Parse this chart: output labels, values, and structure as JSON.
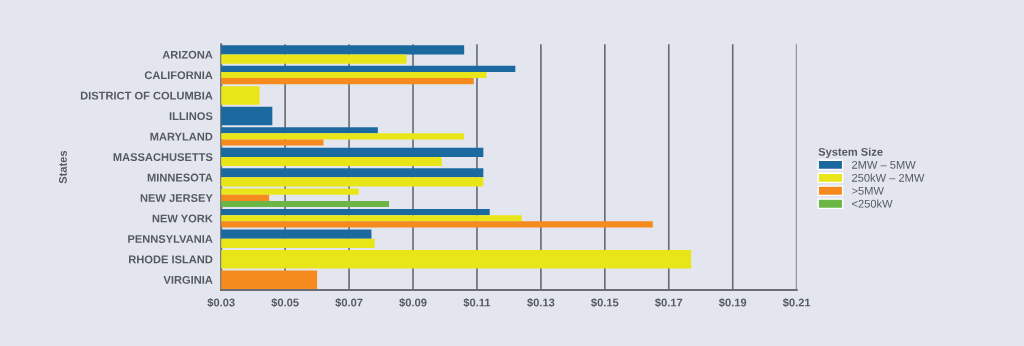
{
  "chart_data": {
    "type": "bar",
    "orientation": "horizontal",
    "ylabel": "States",
    "legend_title": "System Size",
    "legend": "right",
    "grid": "x",
    "categories": [
      "ARIZONA",
      "CALIFORNIA",
      "DISTRICT OF COLUMBIA",
      "ILLINOS",
      "MARYLAND",
      "MASSACHUSETTS",
      "MINNESOTA",
      "NEW JERSEY",
      "NEW YORK",
      "PENNSYLVANIA",
      "RHODE ISLAND",
      "VIRGINIA"
    ],
    "series": [
      {
        "name": "2MW – 5MW",
        "color": "#1a6aa0",
        "values": [
          0.106,
          0.122,
          null,
          0.046,
          0.079,
          0.112,
          0.112,
          null,
          0.114,
          0.077,
          null,
          null
        ]
      },
      {
        "name": "250kW – 2MW",
        "color": "#e8e619",
        "values": [
          0.088,
          0.113,
          0.042,
          null,
          0.106,
          0.099,
          0.112,
          0.073,
          0.124,
          0.078,
          0.177,
          null
        ]
      },
      {
        "name": ">5MW",
        "color": "#f58a1f",
        "values": [
          null,
          0.109,
          null,
          null,
          0.062,
          null,
          null,
          0.045,
          0.165,
          null,
          null,
          0.06
        ]
      },
      {
        "name": "<250kW",
        "color": "#6bb644",
        "values": [
          null,
          null,
          null,
          null,
          null,
          null,
          null,
          0.0825,
          null,
          null,
          null,
          null
        ]
      }
    ],
    "xlim": [
      0.03,
      0.21
    ],
    "xticks": [
      {
        "value": 0.03,
        "label": "$0.03"
      },
      {
        "value": 0.05,
        "label": "$0.05"
      },
      {
        "value": 0.07,
        "label": "$0.07"
      },
      {
        "value": 0.09,
        "label": "$0.09"
      },
      {
        "value": 0.11,
        "label": "$0.11"
      },
      {
        "value": 0.13,
        "label": "$0.13"
      },
      {
        "value": 0.15,
        "label": "$0.15"
      },
      {
        "value": 0.17,
        "label": "$0.17"
      },
      {
        "value": 0.19,
        "label": "$0.19"
      },
      {
        "value": 0.21,
        "label": "$0.21"
      }
    ]
  }
}
